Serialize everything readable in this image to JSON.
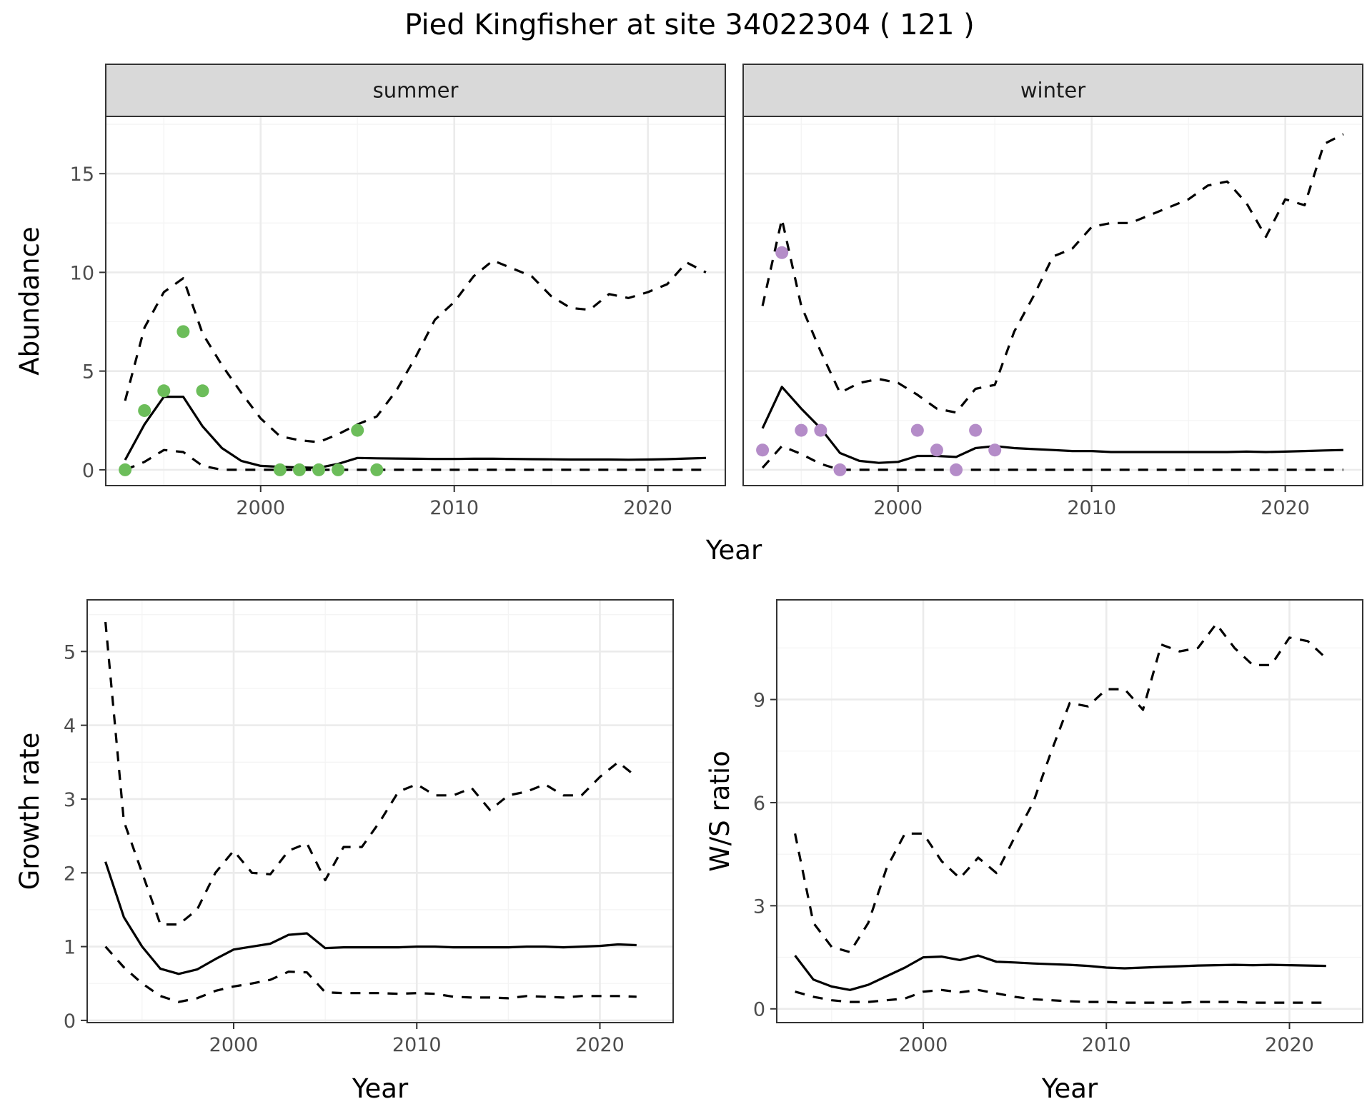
{
  "title": "Pied Kingfisher at site 34022304 ( 121 )",
  "colors": {
    "summer_points": "#6cbd5a",
    "winter_points": "#b48cc8",
    "lines": "#000000"
  },
  "chart_data": [
    {
      "type": "line",
      "facet": "summer",
      "xlabel": "Year",
      "ylabel": "Abundance",
      "xlim": [
        1992,
        2024
      ],
      "ylim": [
        -0.8,
        17.9
      ],
      "xticks": [
        2000,
        2010,
        2020
      ],
      "yticks": [
        0,
        5,
        10,
        15
      ],
      "x": [
        1993,
        1994,
        1995,
        1996,
        1997,
        1998,
        1999,
        2000,
        2001,
        2002,
        2003,
        2004,
        2005,
        2006,
        2007,
        2008,
        2009,
        2010,
        2011,
        2012,
        2013,
        2014,
        2015,
        2016,
        2017,
        2018,
        2019,
        2020,
        2021,
        2022,
        2023
      ],
      "series": [
        {
          "role": "mean",
          "values": [
            0.5,
            2.3,
            3.7,
            3.7,
            2.2,
            1.1,
            0.45,
            0.2,
            0.15,
            0.12,
            0.1,
            0.3,
            0.6,
            0.58,
            0.57,
            0.56,
            0.55,
            0.55,
            0.56,
            0.56,
            0.55,
            0.54,
            0.53,
            0.52,
            0.52,
            0.52,
            0.51,
            0.52,
            0.54,
            0.57,
            0.6
          ]
        },
        {
          "role": "upper",
          "values": [
            3.5,
            7.2,
            9.0,
            9.7,
            6.9,
            5.3,
            3.9,
            2.6,
            1.7,
            1.5,
            1.4,
            1.8,
            2.3,
            2.7,
            4.0,
            5.7,
            7.6,
            8.5,
            9.8,
            10.6,
            10.2,
            9.8,
            8.8,
            8.2,
            8.1,
            8.9,
            8.7,
            9.0,
            9.4,
            10.5,
            10.0
          ]
        },
        {
          "role": "lower",
          "values": [
            0.0,
            0.4,
            1.0,
            0.9,
            0.2,
            0.0,
            0.0,
            0.0,
            0.0,
            0.0,
            0.0,
            0.0,
            0.0,
            0.0,
            0.0,
            0.0,
            0.0,
            0.0,
            0.0,
            0.0,
            0.0,
            0.0,
            0.0,
            0.0,
            0.0,
            0.0,
            0.0,
            0.0,
            0.0,
            0.0,
            0.0
          ]
        }
      ],
      "points": {
        "x": [
          1993,
          1994,
          1995,
          1996,
          1997,
          2001,
          2002,
          2003,
          2004,
          2005,
          2006
        ],
        "y": [
          0,
          3,
          4,
          7,
          4,
          0,
          0,
          0,
          0,
          2,
          0
        ]
      }
    },
    {
      "type": "line",
      "facet": "winter",
      "xlabel": "Year",
      "ylabel": "Abundance",
      "xlim": [
        1992,
        2024
      ],
      "ylim": [
        -0.8,
        17.9
      ],
      "xticks": [
        2000,
        2010,
        2020
      ],
      "yticks": [
        0,
        5,
        10,
        15
      ],
      "x": [
        1993,
        1994,
        1995,
        1996,
        1997,
        1998,
        1999,
        2000,
        2001,
        2002,
        2003,
        2004,
        2005,
        2006,
        2007,
        2008,
        2009,
        2010,
        2011,
        2012,
        2013,
        2014,
        2015,
        2016,
        2017,
        2018,
        2019,
        2020,
        2021,
        2022,
        2023
      ],
      "series": [
        {
          "role": "mean",
          "values": [
            2.1,
            4.2,
            3.1,
            2.1,
            0.85,
            0.45,
            0.35,
            0.4,
            0.7,
            0.7,
            0.65,
            1.1,
            1.2,
            1.1,
            1.05,
            1.0,
            0.95,
            0.95,
            0.9,
            0.9,
            0.9,
            0.9,
            0.9,
            0.9,
            0.9,
            0.92,
            0.9,
            0.92,
            0.95,
            0.98,
            1.0
          ]
        },
        {
          "role": "upper",
          "values": [
            8.3,
            12.7,
            8.3,
            6.0,
            3.9,
            4.4,
            4.6,
            4.4,
            3.8,
            3.1,
            2.9,
            4.1,
            4.3,
            7.0,
            8.8,
            10.8,
            11.2,
            12.3,
            12.5,
            12.5,
            12.9,
            13.3,
            13.7,
            14.4,
            14.6,
            13.5,
            11.8,
            13.7,
            13.4,
            16.5,
            17.0
          ]
        },
        {
          "role": "lower",
          "values": [
            0.1,
            1.2,
            0.8,
            0.3,
            0.0,
            0.0,
            0.0,
            0.0,
            0.0,
            0.0,
            0.0,
            0.0,
            0.0,
            0.0,
            0.0,
            0.0,
            0.0,
            0.0,
            0.0,
            0.0,
            0.0,
            0.0,
            0.0,
            0.0,
            0.0,
            0.0,
            0.0,
            0.0,
            0.0,
            0.0,
            0.0
          ]
        }
      ],
      "points": {
        "x": [
          1993,
          1994,
          1995,
          1996,
          1997,
          2001,
          2002,
          2003,
          2004,
          2005
        ],
        "y": [
          1,
          11,
          2,
          2,
          0,
          2,
          1,
          0,
          2,
          1
        ]
      }
    },
    {
      "type": "line",
      "xlabel": "Year",
      "ylabel": "Growth rate",
      "xlim": [
        1992,
        2024
      ],
      "ylim": [
        -0.03,
        5.7
      ],
      "xticks": [
        2000,
        2010,
        2020
      ],
      "yticks": [
        0,
        1,
        2,
        3,
        4,
        5
      ],
      "x": [
        1993,
        1994,
        1995,
        1996,
        1997,
        1998,
        1999,
        2000,
        2001,
        2002,
        2003,
        2004,
        2005,
        2006,
        2007,
        2008,
        2009,
        2010,
        2011,
        2012,
        2013,
        2014,
        2015,
        2016,
        2017,
        2018,
        2019,
        2020,
        2021,
        2022
      ],
      "series": [
        {
          "role": "mean",
          "values": [
            2.15,
            1.4,
            1.0,
            0.7,
            0.63,
            0.69,
            0.83,
            0.96,
            1.0,
            1.04,
            1.16,
            1.18,
            0.98,
            0.99,
            0.99,
            0.99,
            0.99,
            1.0,
            1.0,
            0.99,
            0.99,
            0.99,
            0.99,
            1.0,
            1.0,
            0.99,
            1.0,
            1.01,
            1.03,
            1.02
          ]
        },
        {
          "role": "upper",
          "values": [
            5.4,
            2.7,
            2.0,
            1.3,
            1.3,
            1.5,
            2.0,
            2.3,
            2.0,
            1.98,
            2.3,
            2.4,
            1.9,
            2.35,
            2.35,
            2.7,
            3.1,
            3.2,
            3.05,
            3.05,
            3.15,
            2.85,
            3.05,
            3.1,
            3.2,
            3.05,
            3.05,
            3.3,
            3.5,
            3.3
          ]
        },
        {
          "role": "lower",
          "values": [
            1.0,
            0.72,
            0.5,
            0.33,
            0.25,
            0.3,
            0.4,
            0.46,
            0.5,
            0.55,
            0.66,
            0.65,
            0.38,
            0.37,
            0.37,
            0.37,
            0.36,
            0.37,
            0.36,
            0.32,
            0.31,
            0.31,
            0.3,
            0.33,
            0.32,
            0.31,
            0.33,
            0.33,
            0.33,
            0.32
          ]
        }
      ]
    },
    {
      "type": "line",
      "xlabel": "Year",
      "ylabel": "W/S ratio",
      "xlim": [
        1992,
        2024
      ],
      "ylim": [
        -0.4,
        11.9
      ],
      "xticks": [
        2000,
        2010,
        2020
      ],
      "yticks": [
        0,
        3,
        6,
        9
      ],
      "x": [
        1993,
        1994,
        1995,
        1996,
        1997,
        1998,
        1999,
        2000,
        2001,
        2002,
        2003,
        2004,
        2005,
        2006,
        2007,
        2008,
        2009,
        2010,
        2011,
        2012,
        2013,
        2014,
        2015,
        2016,
        2017,
        2018,
        2019,
        2020,
        2021,
        2022
      ],
      "series": [
        {
          "role": "mean",
          "values": [
            1.55,
            0.85,
            0.65,
            0.55,
            0.7,
            0.95,
            1.2,
            1.5,
            1.52,
            1.42,
            1.55,
            1.37,
            1.35,
            1.32,
            1.3,
            1.28,
            1.25,
            1.2,
            1.18,
            1.2,
            1.22,
            1.24,
            1.26,
            1.27,
            1.28,
            1.27,
            1.28,
            1.27,
            1.26,
            1.25
          ]
        },
        {
          "role": "upper",
          "values": [
            5.1,
            2.5,
            1.8,
            1.65,
            2.5,
            4.1,
            5.1,
            5.1,
            4.3,
            3.8,
            4.4,
            3.95,
            5.0,
            6.0,
            7.5,
            8.9,
            8.8,
            9.3,
            9.3,
            8.7,
            10.6,
            10.4,
            10.5,
            11.2,
            10.5,
            10.0,
            10.0,
            10.8,
            10.7,
            10.2
          ]
        },
        {
          "role": "lower",
          "values": [
            0.5,
            0.35,
            0.25,
            0.2,
            0.2,
            0.25,
            0.3,
            0.5,
            0.55,
            0.48,
            0.55,
            0.45,
            0.35,
            0.28,
            0.25,
            0.22,
            0.2,
            0.2,
            0.18,
            0.18,
            0.18,
            0.18,
            0.2,
            0.2,
            0.2,
            0.18,
            0.18,
            0.18,
            0.18,
            0.18
          ]
        }
      ]
    }
  ]
}
